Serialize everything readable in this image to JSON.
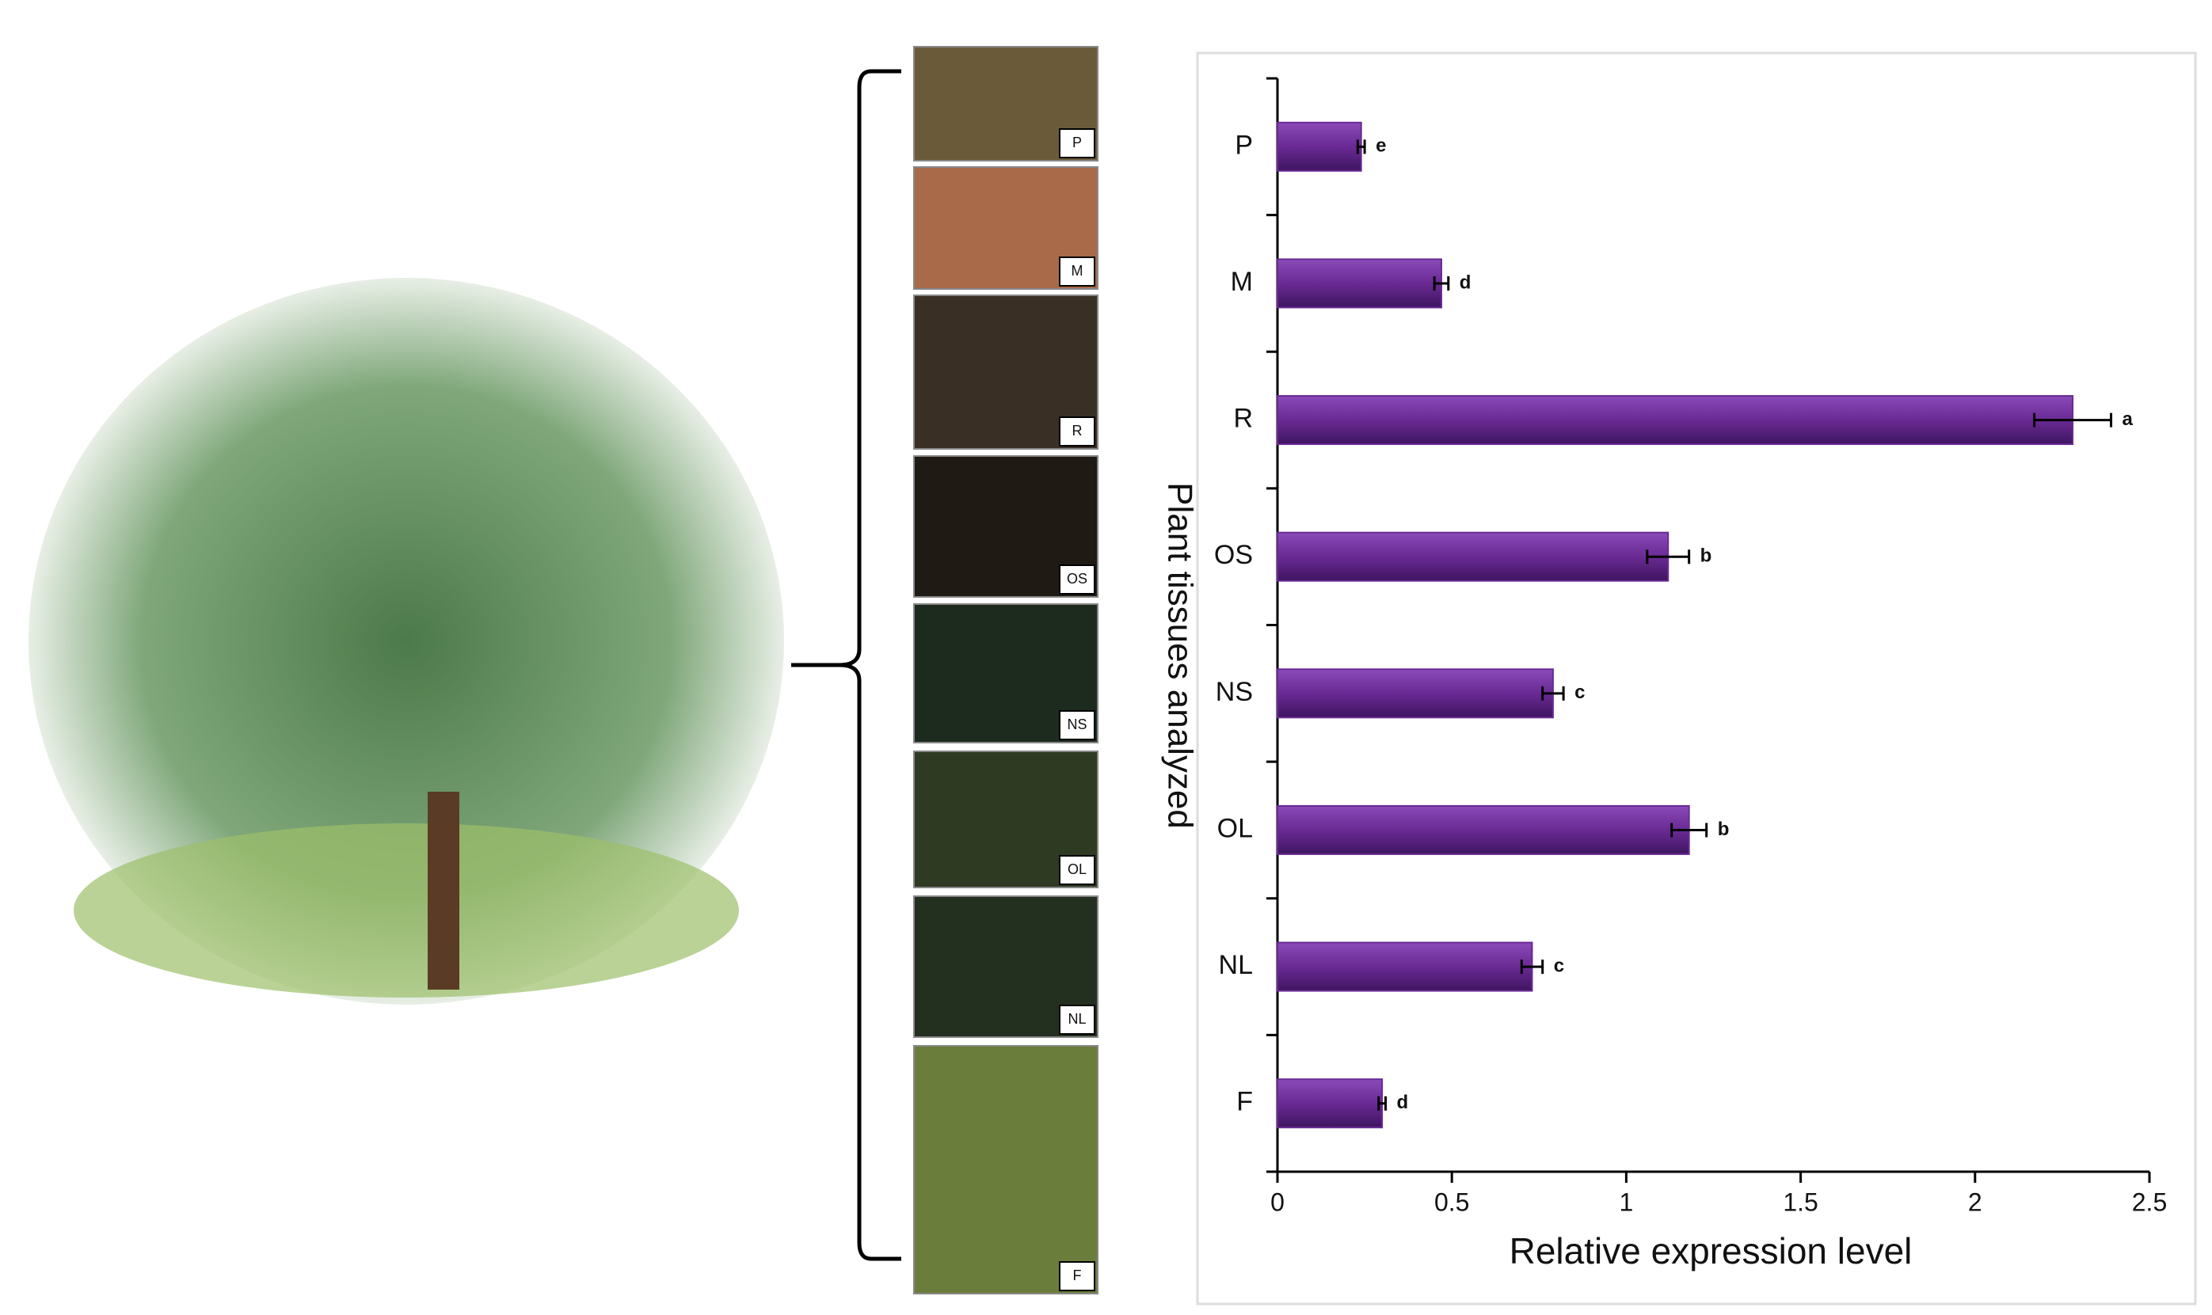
{
  "chart_data": {
    "type": "bar",
    "orientation": "horizontal",
    "x_label": "Relative expression level",
    "y_label": "Plant tissues analyzed",
    "categories": [
      "P",
      "M",
      "R",
      "OS",
      "NS",
      "OL",
      "NL",
      "F"
    ],
    "values": [
      0.24,
      0.47,
      2.28,
      1.12,
      0.79,
      1.18,
      0.73,
      0.3
    ],
    "errors": [
      0.01,
      0.02,
      0.11,
      0.06,
      0.03,
      0.05,
      0.03,
      0.01
    ],
    "significance": [
      "e",
      "d",
      "a",
      "b",
      "c",
      "b",
      "c",
      "d"
    ],
    "color": "#6a2a94",
    "xlim": [
      0,
      2.5
    ],
    "xticks": [
      0,
      0.5,
      1,
      1.5,
      2,
      2.5
    ],
    "grid": false
  },
  "photos": {
    "labels": [
      "P",
      "M",
      "R",
      "OS",
      "NS",
      "OL",
      "NL",
      "F"
    ]
  }
}
